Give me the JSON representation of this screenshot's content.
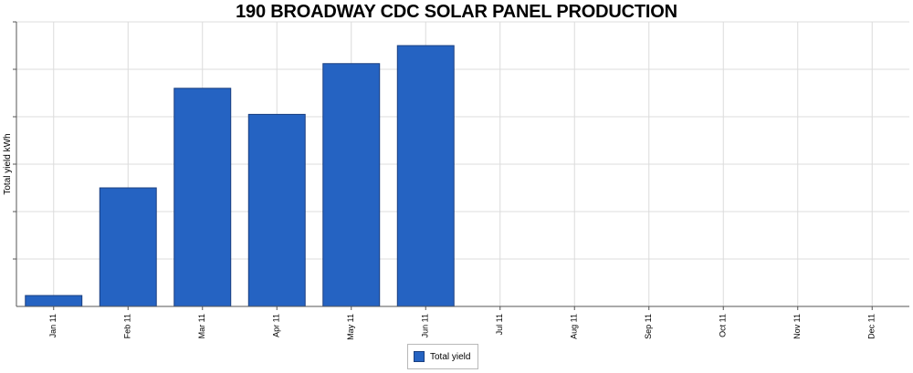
{
  "chart_data": {
    "type": "bar",
    "title": "190 BROADWAY CDC SOLAR PANEL PRODUCTION",
    "ylabel": "Total yield kWh",
    "xlabel": "",
    "categories": [
      "Jan 11",
      "Feb 11",
      "Mar 11",
      "Apr 11",
      "May 11",
      "Jun 11",
      "Jul 11",
      "Aug 11",
      "Sep 11",
      "Oct 11",
      "Nov 11",
      "Dec 11"
    ],
    "series": [
      {
        "name": "Total yield",
        "color": "#2563c2",
        "values": [
          0.23,
          2.5,
          4.6,
          4.05,
          5.12,
          5.5,
          null,
          null,
          null,
          null,
          null,
          null
        ]
      }
    ],
    "ylim": [
      0,
      6
    ],
    "y_tick_labels_visible": false,
    "grid": true,
    "legend_position": "bottom-center"
  }
}
